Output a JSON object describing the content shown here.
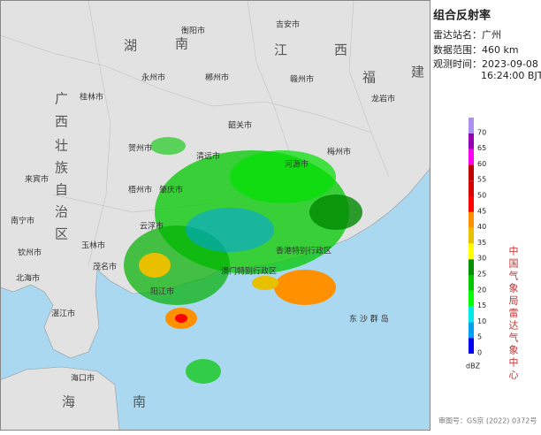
{
  "title": "组合反射率",
  "info": [
    "雷达站名：广州",
    "数据范围：460 km",
    "观测时间：2023-09-08",
    "16:24:00 BJT"
  ],
  "legend": {
    "levels": [
      0,
      5,
      10,
      15,
      20,
      25,
      30,
      35,
      40,
      45,
      50,
      55,
      60,
      65,
      70
    ],
    "colors": [
      "#0000f0",
      "#00a0f0",
      "#00e8e8",
      "#00ff00",
      "#00c800",
      "#009000",
      "#ffff00",
      "#e8c000",
      "#ff9000",
      "#ff0000",
      "#d60000",
      "#c00000",
      "#ff00f0",
      "#9600b4",
      "#ad90f0"
    ],
    "unit": "dBZ"
  },
  "vertical_text": "中国气象局雷达气象中心",
  "footer": "审图号：GS京 (2022) 0372号",
  "map_labels": [
    "衡阳市",
    "吉安市",
    "永州市",
    "郴州市",
    "赣州市",
    "桂林市",
    "韶关市",
    "梅州市",
    "龙岩市",
    "河源市",
    "清远市",
    "贺州市",
    "梧州市",
    "肇庆市",
    "云浮市",
    "玉林市",
    "来宾市",
    "南宁市",
    "钦州市",
    "北海市",
    "茂名市",
    "阳江市",
    "湛江市",
    "海口市",
    "香港特别行政区",
    "澳门特别行政区",
    "东 沙 群 岛",
    "湖",
    "南",
    "江",
    "西",
    "广",
    "西",
    "壮",
    "族",
    "自",
    "治",
    "区",
    "福",
    "建",
    "海",
    "南"
  ]
}
